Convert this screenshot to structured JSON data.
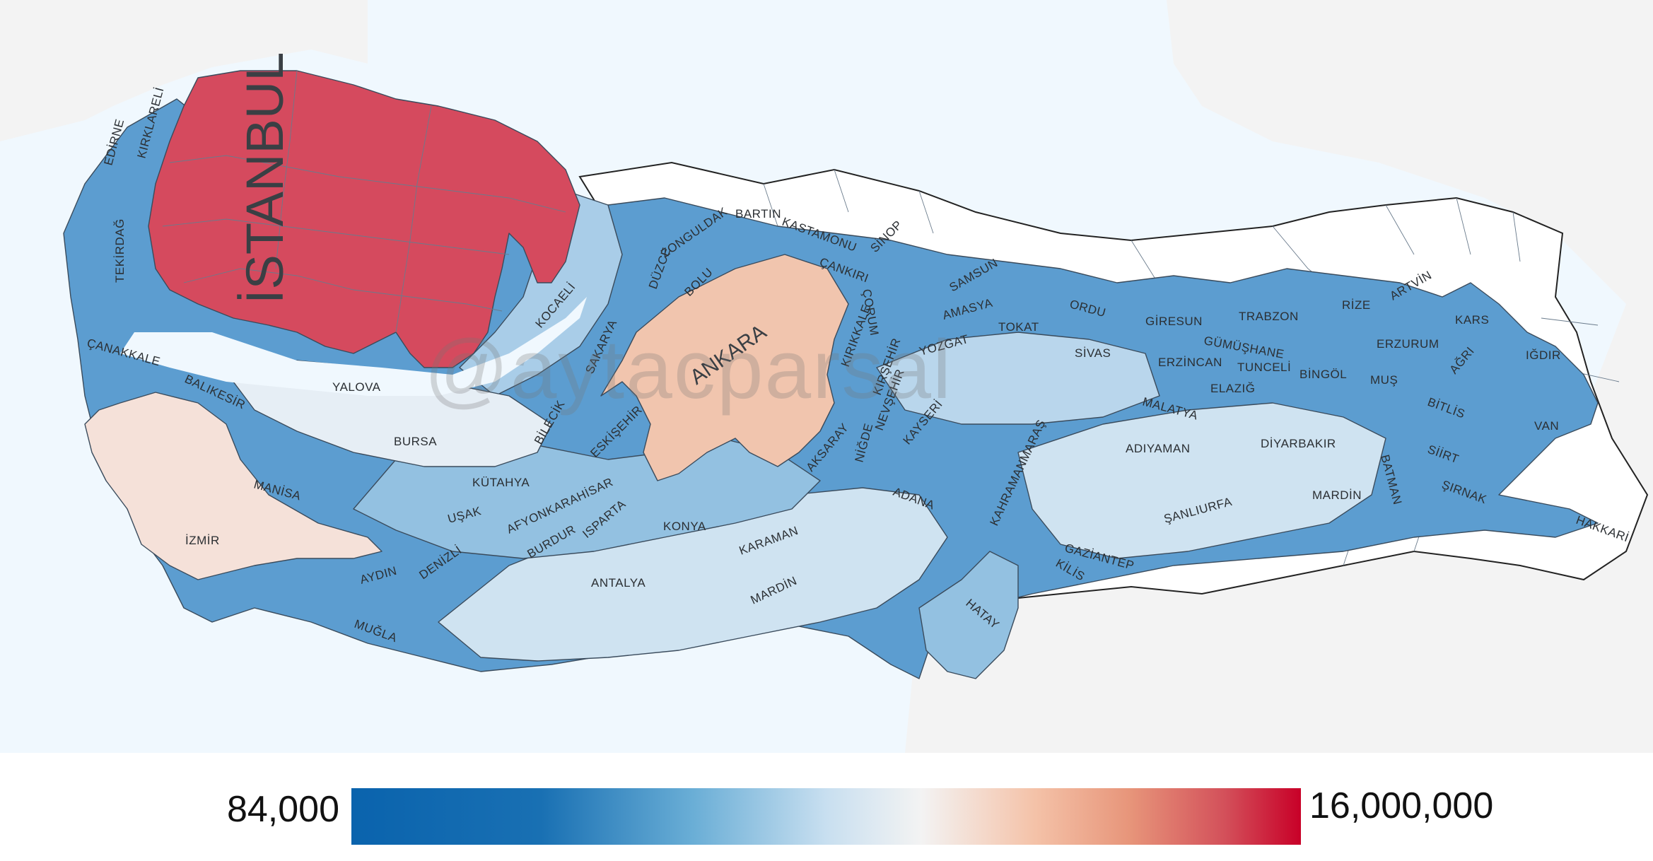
{
  "colors": {
    "sea": "#f0f8fe",
    "land_outside": "#f3f3f3",
    "scale_min": "#0a63ad",
    "scale_mid": "#f3f3f3",
    "scale_max": "#c80028",
    "istanbul": "#d54a5e",
    "ankara": "#f1c5ae",
    "izmir": "#f5e1d9",
    "bursa": "#e6eef5",
    "light_blue": "#cfe3f1",
    "mid_blue": "#93c1e1",
    "blue": "#4f95cb",
    "dark_blue": "#2c7bbd",
    "no_data": "#ffffff"
  },
  "map": {
    "labels": {
      "istanbul": "İSTANBUL",
      "ankara": "ANKARA",
      "izmir": "İZMİR",
      "bursa": "BURSA",
      "konya": "KONYA",
      "antalya": "ANTALYA",
      "adana": "ADANA",
      "mardin_west": "MARDİN",
      "gaziantep": "GAZİANTEP",
      "sanliurfa": "ŞANLIURFA",
      "diyarbakir": "DİYARBAKIR",
      "van": "VAN",
      "erzurum": "ERZURUM",
      "trabzon": "TRABZON",
      "samsun": "SAMSUN",
      "kocaeli": "KOCAELİ",
      "sakarya": "SAKARYA",
      "zonguldak": "ZONGULDAK",
      "bartin": "BARTIN",
      "kastamonu": "KASTAMONU",
      "sinop": "SİNOP",
      "bolu": "BOLU",
      "duzce": "DÜZCE",
      "cankiri": "ÇANKIRI",
      "corum": "ÇORUM",
      "amasya": "AMASYA",
      "tokat": "TOKAT",
      "ordu": "ORDU",
      "giresun": "GİRESUN",
      "gumushane": "GÜMÜŞHANE",
      "rize": "RİZE",
      "artvin": "ARTVİN",
      "kars": "KARS",
      "igdir": "IĞDIR",
      "agri": "AĞRI",
      "mus": "MUŞ",
      "bitlis": "BİTLİS",
      "siirt": "SİİRT",
      "sirnak": "ŞIRNAK",
      "hakkari": "HAKKARİ",
      "batman": "BATMAN",
      "mardin": "MARDİN",
      "bingol": "BİNGÖL",
      "tunceli": "TUNCELİ",
      "elazig": "ELAZIĞ",
      "erzincan": "ERZİNCAN",
      "sivas": "SİVAS",
      "malatya": "MALATYA",
      "adiyaman": "ADIYAMAN",
      "kahramanmaras": "KAHRAMANMARAŞ",
      "kilis": "KİLİS",
      "hatay": "HATAY",
      "kayseri": "KAYSERİ",
      "nevsehir": "NEVŞEHİR",
      "nigde": "NİĞDE",
      "aksaray": "AKSARAY",
      "kirsehir": "KIRŞEHİR",
      "kirikkale": "KIRIKKALE",
      "yozgat": "YOZGAT",
      "karaman": "KARAMAN",
      "isparta": "ISPARTA",
      "burdur": "BURDUR",
      "afyonkarahisar": "AFYONKARAHİSAR",
      "usak": "UŞAK",
      "kutahya": "KÜTAHYA",
      "eskisehir": "ESKİŞEHİR",
      "bilecik": "BİLECİK",
      "denizli": "DENİZLİ",
      "aydin": "AYDIN",
      "mugla": "MUĞLA",
      "manisa": "MANİSA",
      "balikesir": "BALIKESİR",
      "canakkale": "ÇANAKKALE",
      "yalova": "YALOVA",
      "tekirdag": "TEKİRDAĞ",
      "edirne": "EDİRNE",
      "kirklareli": "KIRKLARELİ"
    }
  },
  "watermark": "@aytacparsal",
  "legend": {
    "min_label": "84,000",
    "max_label": "16,000,000"
  }
}
